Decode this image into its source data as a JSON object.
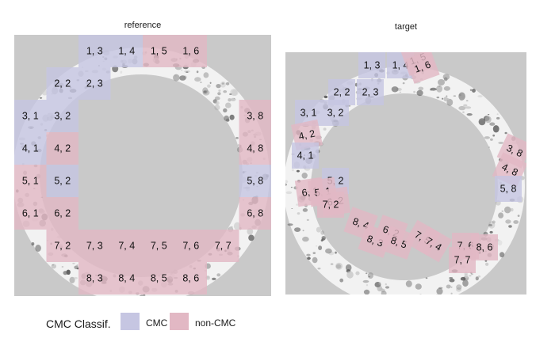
{
  "colors": {
    "cmc": "#c6c6e2",
    "non_cmc": "#e2b8c4",
    "panel_bg": "#c9c9c9"
  },
  "reference": {
    "title": "reference",
    "cells": [
      {
        "label": "1, 3",
        "cls": "cmc"
      },
      {
        "label": "1, 4",
        "cls": "cmc"
      },
      {
        "label": "1, 5",
        "cls": "non_cmc"
      },
      {
        "label": "1, 6",
        "cls": "non_cmc"
      },
      {
        "label": "2, 2",
        "cls": "cmc"
      },
      {
        "label": "2, 3",
        "cls": "cmc"
      },
      {
        "label": "3, 1",
        "cls": "cmc"
      },
      {
        "label": "3, 2",
        "cls": "cmc"
      },
      {
        "label": "3, 8",
        "cls": "non_cmc"
      },
      {
        "label": "4, 1",
        "cls": "cmc"
      },
      {
        "label": "4, 2",
        "cls": "non_cmc"
      },
      {
        "label": "4, 8",
        "cls": "non_cmc"
      },
      {
        "label": "5, 1",
        "cls": "non_cmc"
      },
      {
        "label": "5, 2",
        "cls": "cmc"
      },
      {
        "label": "5, 8",
        "cls": "cmc"
      },
      {
        "label": "6, 1",
        "cls": "non_cmc"
      },
      {
        "label": "6, 2",
        "cls": "non_cmc"
      },
      {
        "label": "6, 8",
        "cls": "non_cmc"
      },
      {
        "label": "7, 2",
        "cls": "non_cmc"
      },
      {
        "label": "7, 3",
        "cls": "non_cmc"
      },
      {
        "label": "7, 4",
        "cls": "non_cmc"
      },
      {
        "label": "7, 5",
        "cls": "non_cmc"
      },
      {
        "label": "7, 6",
        "cls": "non_cmc"
      },
      {
        "label": "7, 7",
        "cls": "non_cmc"
      },
      {
        "label": "8, 3",
        "cls": "non_cmc"
      },
      {
        "label": "8, 4",
        "cls": "non_cmc"
      },
      {
        "label": "8, 5",
        "cls": "non_cmc"
      },
      {
        "label": "8, 6",
        "cls": "non_cmc"
      }
    ]
  },
  "target": {
    "title": "target",
    "cells": [
      {
        "label": "1, 3",
        "cls": "cmc"
      },
      {
        "label": "1, 4",
        "cls": "cmc"
      },
      {
        "label": "1, 5",
        "cls": "non_cmc"
      },
      {
        "label": "1, 6",
        "cls": "non_cmc"
      },
      {
        "label": "2, 2",
        "cls": "cmc"
      },
      {
        "label": "2, 3",
        "cls": "cmc"
      },
      {
        "label": "3, 1",
        "cls": "cmc"
      },
      {
        "label": "3, 2",
        "cls": "cmc"
      },
      {
        "label": "4, 2",
        "cls": "non_cmc"
      },
      {
        "label": "4, 1",
        "cls": "cmc"
      },
      {
        "label": "3, 8",
        "cls": "non_cmc"
      },
      {
        "label": "4, 8",
        "cls": "non_cmc"
      },
      {
        "label": "5, 8",
        "cls": "cmc"
      },
      {
        "label": "5, 2",
        "cls": "cmc"
      },
      {
        "label": "6, 1",
        "cls": "non_cmc"
      },
      {
        "label": "5, 1",
        "cls": "non_cmc"
      },
      {
        "label": "6, 2",
        "cls": "non_cmc"
      },
      {
        "label": "7, 2",
        "cls": "non_cmc"
      },
      {
        "label": "8, 4",
        "cls": "non_cmc"
      },
      {
        "label": "8, 3",
        "cls": "non_cmc"
      },
      {
        "label": "6, 2",
        "cls": "non_cmc"
      },
      {
        "label": "8, 5",
        "cls": "non_cmc"
      },
      {
        "label": "7, 5",
        "cls": "non_cmc"
      },
      {
        "label": "7, 4",
        "cls": "non_cmc"
      },
      {
        "label": "7, 6",
        "cls": "non_cmc"
      },
      {
        "label": "8, 6",
        "cls": "non_cmc"
      },
      {
        "label": "7, 7",
        "cls": "non_cmc"
      }
    ]
  },
  "legend": {
    "title": "CMC Classif.",
    "cmc_label": "CMC",
    "non_cmc_label": "non-CMC"
  }
}
